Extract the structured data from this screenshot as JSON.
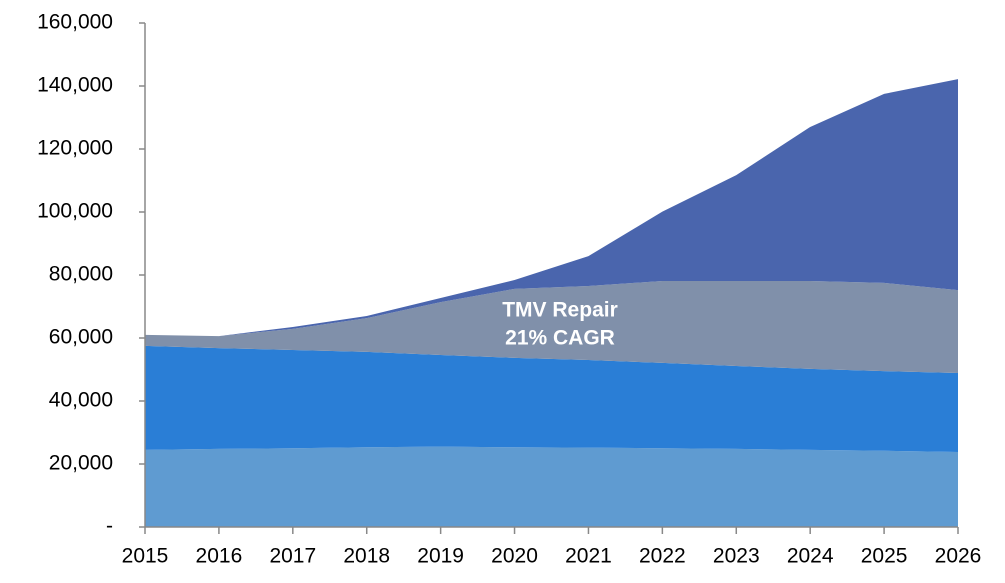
{
  "chart_data": {
    "type": "stacked-area",
    "categories": [
      "2015",
      "2016",
      "2017",
      "2018",
      "2019",
      "2020",
      "2021",
      "2022",
      "2023",
      "2024",
      "2025",
      "2026"
    ],
    "series": [
      {
        "color": "#5f9bd1",
        "values": [
          24500,
          24800,
          25000,
          25300,
          25500,
          25300,
          25200,
          25000,
          24800,
          24500,
          24200,
          23800
        ]
      },
      {
        "color": "#2a7ed6",
        "values": [
          33000,
          32000,
          31200,
          30300,
          29100,
          28400,
          27800,
          27100,
          26300,
          25700,
          25300,
          25100
        ]
      },
      {
        "color": "#8090aa",
        "values": [
          3500,
          3800,
          6700,
          10700,
          16800,
          21900,
          23500,
          26000,
          27000,
          27900,
          28000,
          26300
        ]
      },
      {
        "color": "#4a65ad",
        "values": [
          0,
          0,
          600,
          700,
          1300,
          2800,
          9500,
          22000,
          33600,
          48900,
          60000,
          67000
        ]
      }
    ],
    "annotation": [
      "TMV Repair",
      "21% CAGR"
    ],
    "ylim": [
      0,
      160000
    ],
    "yticks": [
      {
        "value": 0,
        "label": "-"
      },
      {
        "value": 20000,
        "label": "20,000"
      },
      {
        "value": 40000,
        "label": "40,000"
      },
      {
        "value": 60000,
        "label": "60,000"
      },
      {
        "value": 80000,
        "label": "80,000"
      },
      {
        "value": 100000,
        "label": "100,000"
      },
      {
        "value": 120000,
        "label": "120,000"
      },
      {
        "value": 140000,
        "label": "140,000"
      },
      {
        "value": 160000,
        "label": "160,000"
      }
    ]
  }
}
